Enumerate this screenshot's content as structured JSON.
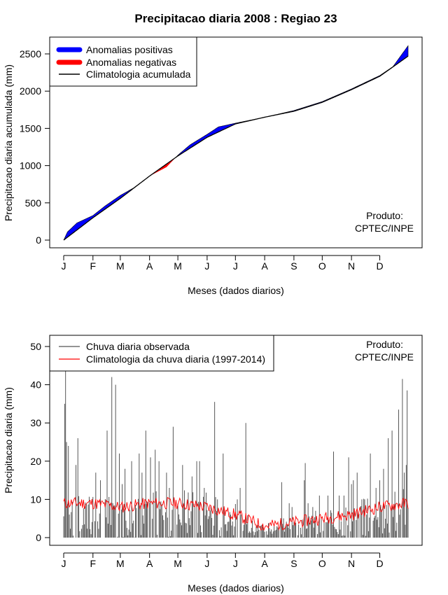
{
  "title": "Precipitacao diaria 2008 : Regiao 23",
  "chart_data": [
    {
      "type": "area",
      "ylabel": "Precipitacao diaria acumulada (mm)",
      "xlabel": "Meses (dados diarios)",
      "ylim": [
        0,
        2600
      ],
      "yticks": [
        0,
        500,
        1000,
        1500,
        2000,
        2500
      ],
      "months": [
        "J",
        "F",
        "M",
        "A",
        "M",
        "J",
        "J",
        "A",
        "S",
        "O",
        "N",
        "D"
      ],
      "month_start_days": [
        1,
        32,
        61,
        92,
        122,
        153,
        183,
        214,
        245,
        275,
        306,
        336
      ],
      "days_in_year": 366,
      "legend": [
        {
          "label": "Anomalias positivas",
          "color": "#0000ff"
        },
        {
          "label": "Anomalias negativas",
          "color": "#ff0000"
        },
        {
          "label": "Climatologia acumulada",
          "color": "#000000"
        }
      ],
      "product_label": [
        "Produto:",
        "CPTEC/INPE"
      ],
      "climatology_cumulative": {
        "day": [
          1,
          32,
          61,
          92,
          122,
          153,
          183,
          214,
          245,
          275,
          306,
          336,
          366
        ],
        "value": [
          0,
          300,
          560,
          860,
          1130,
          1380,
          1560,
          1650,
          1730,
          1850,
          2020,
          2200,
          2470
        ]
      },
      "observed_cumulative": {
        "day": [
          1,
          5,
          15,
          32,
          45,
          61,
          75,
          92,
          110,
          122,
          135,
          153,
          165,
          183,
          214,
          245,
          275,
          306,
          336,
          350,
          366
        ],
        "value": [
          0,
          110,
          230,
          330,
          460,
          600,
          700,
          860,
          980,
          1140,
          1280,
          1420,
          1520,
          1570,
          1650,
          1740,
          1860,
          2030,
          2210,
          2330,
          2610
        ]
      }
    },
    {
      "type": "line",
      "ylabel": "Precipitacao diaria (mm)",
      "xlabel": "Meses (dados diarios)",
      "ylim": [
        0,
        52
      ],
      "yticks": [
        0,
        10,
        20,
        30,
        40,
        50
      ],
      "months": [
        "J",
        "F",
        "M",
        "A",
        "M",
        "J",
        "J",
        "A",
        "S",
        "O",
        "N",
        "D"
      ],
      "month_start_days": [
        1,
        32,
        61,
        92,
        122,
        153,
        183,
        214,
        245,
        275,
        306,
        336
      ],
      "days_in_year": 366,
      "legend": [
        {
          "label": "Chuva diaria observada",
          "color": "#555555"
        },
        {
          "label": "Climatologia da chuva diaria (1997-2014)",
          "color": "#ff0000"
        }
      ],
      "product_label": [
        "Produto:",
        "CPTEC/INPE"
      ],
      "climatology_anchors": {
        "day": [
          1,
          32,
          61,
          92,
          122,
          153,
          183,
          214,
          245,
          275,
          306,
          336,
          366
        ],
        "value": [
          9,
          9,
          8,
          9,
          9,
          8,
          6,
          3,
          4,
          5,
          6,
          8,
          9
        ]
      },
      "observed_peaks": [
        {
          "day": 2,
          "value": 35
        },
        {
          "day": 3,
          "value": 43.5
        },
        {
          "day": 4,
          "value": 25
        },
        {
          "day": 6,
          "value": 24
        },
        {
          "day": 14,
          "value": 19
        },
        {
          "day": 16,
          "value": 26
        },
        {
          "day": 35,
          "value": 17
        },
        {
          "day": 40,
          "value": 15
        },
        {
          "day": 47,
          "value": 28
        },
        {
          "day": 52,
          "value": 42
        },
        {
          "day": 56,
          "value": 40
        },
        {
          "day": 60,
          "value": 22
        },
        {
          "day": 63,
          "value": 14
        },
        {
          "day": 66,
          "value": 18
        },
        {
          "day": 73,
          "value": 20
        },
        {
          "day": 81,
          "value": 22
        },
        {
          "day": 84,
          "value": 17
        },
        {
          "day": 88,
          "value": 28
        },
        {
          "day": 93,
          "value": 21
        },
        {
          "day": 98,
          "value": 23
        },
        {
          "day": 102,
          "value": 20
        },
        {
          "day": 110,
          "value": 17
        },
        {
          "day": 113,
          "value": 13
        },
        {
          "day": 117,
          "value": 29
        },
        {
          "day": 127,
          "value": 19
        },
        {
          "day": 137,
          "value": 16
        },
        {
          "day": 142,
          "value": 20
        },
        {
          "day": 145,
          "value": 20
        },
        {
          "day": 150,
          "value": 13
        },
        {
          "day": 161,
          "value": 35.5
        },
        {
          "day": 164,
          "value": 10
        },
        {
          "day": 170,
          "value": 22
        },
        {
          "day": 178,
          "value": 6
        },
        {
          "day": 185,
          "value": 10
        },
        {
          "day": 188,
          "value": 13
        },
        {
          "day": 194,
          "value": 30
        },
        {
          "day": 205,
          "value": 3
        },
        {
          "day": 232,
          "value": 14.5
        },
        {
          "day": 240,
          "value": 9
        },
        {
          "day": 243,
          "value": 8
        },
        {
          "day": 256,
          "value": 15
        },
        {
          "day": 257,
          "value": 19.5
        },
        {
          "day": 260,
          "value": 9
        },
        {
          "day": 265,
          "value": 8
        },
        {
          "day": 272,
          "value": 11
        },
        {
          "day": 281,
          "value": 11
        },
        {
          "day": 287,
          "value": 22.5
        },
        {
          "day": 293,
          "value": 11
        },
        {
          "day": 298,
          "value": 11
        },
        {
          "day": 303,
          "value": 21
        },
        {
          "day": 306,
          "value": 14
        },
        {
          "day": 308,
          "value": 15
        },
        {
          "day": 312,
          "value": 17
        },
        {
          "day": 317,
          "value": 10
        },
        {
          "day": 320,
          "value": 10
        },
        {
          "day": 326,
          "value": 22
        },
        {
          "day": 332,
          "value": 13
        },
        {
          "day": 336,
          "value": 15
        },
        {
          "day": 340,
          "value": 18
        },
        {
          "day": 345,
          "value": 26
        },
        {
          "day": 349,
          "value": 28
        },
        {
          "day": 352,
          "value": 12
        },
        {
          "day": 356,
          "value": 33.5
        },
        {
          "day": 360,
          "value": 41.5
        },
        {
          "day": 362,
          "value": 17
        },
        {
          "day": 364,
          "value": 19
        },
        {
          "day": 365,
          "value": 38.5
        }
      ]
    }
  ]
}
